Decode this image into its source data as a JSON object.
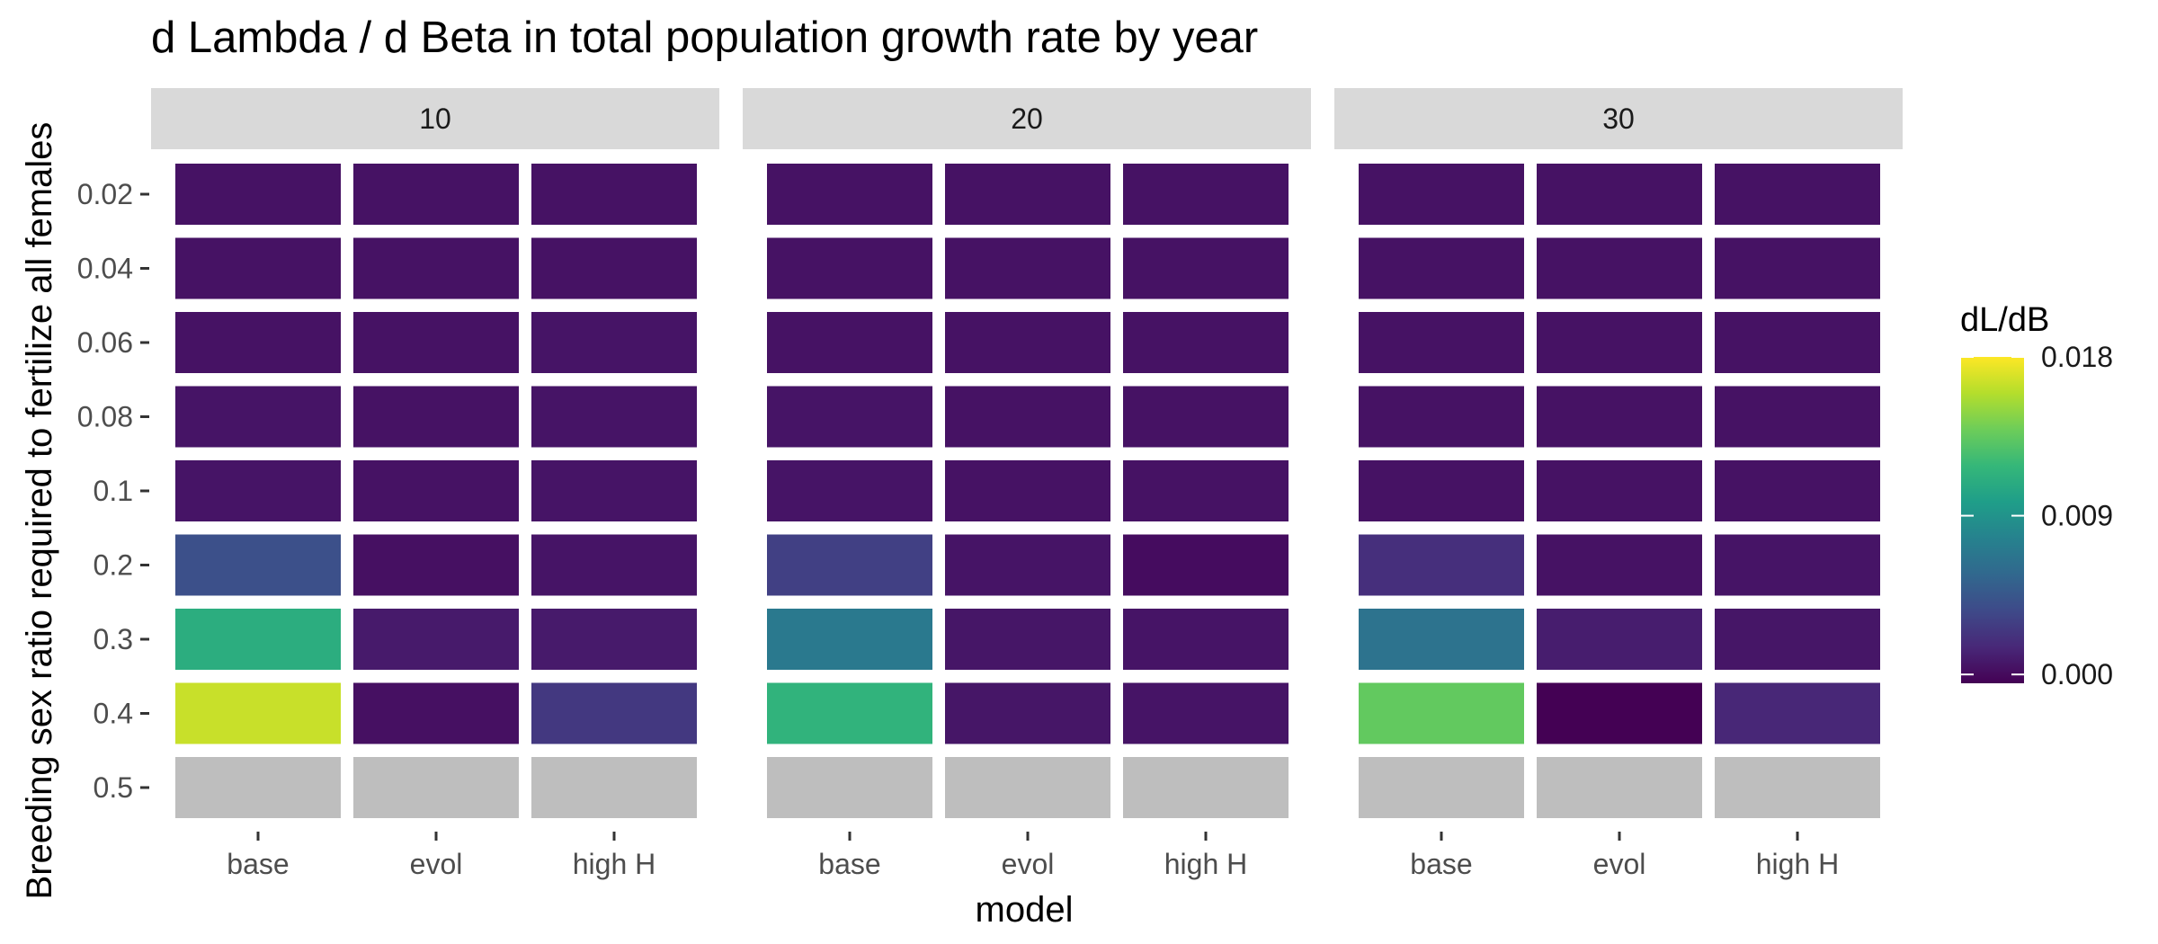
{
  "chart_data": {
    "type": "heatmap",
    "title": "d Lambda / d Beta in total population growth rate by year",
    "xlabel": "model",
    "ylabel": "Breeding sex ratio required to fertilize all females",
    "facet_labels": [
      "10",
      "20",
      "30"
    ],
    "x_categories": [
      "base",
      "evol",
      "high H"
    ],
    "y_categories": [
      "0.02",
      "0.04",
      "0.06",
      "0.08",
      "0.1",
      "0.2",
      "0.3",
      "0.4",
      "0.5"
    ],
    "legend": {
      "title": "dL/dB",
      "breaks": [
        "0.018",
        "0.009",
        "0.000"
      ],
      "limits": [
        -0.0005,
        0.018
      ],
      "placement": "right"
    },
    "na_color": "#bebebe",
    "colors": [
      "#440154",
      "#482878",
      "#3e4a89",
      "#31688e",
      "#26828e",
      "#1f9e89",
      "#35b779",
      "#6dcd59",
      "#b4de2c",
      "#fde725"
    ],
    "grid": false,
    "panels": [
      {
        "facet": "10",
        "values": {
          "base": [
            0.0004,
            0.0004,
            0.0004,
            0.0005,
            0.0005,
            0.004,
            0.011,
            0.0165,
            null
          ],
          "evol": [
            0.0004,
            0.0004,
            0.0004,
            0.0004,
            0.0004,
            0.0003,
            0.0008,
            0.0003,
            null
          ],
          "high H": [
            0.0004,
            0.0004,
            0.0005,
            0.0005,
            0.0005,
            0.0005,
            0.0008,
            0.0025,
            null
          ]
        }
      },
      {
        "facet": "20",
        "values": {
          "base": [
            0.0004,
            0.0004,
            0.0004,
            0.0005,
            0.0005,
            0.003,
            0.007,
            0.0115,
            null
          ],
          "evol": [
            0.0004,
            0.0004,
            0.0004,
            0.0004,
            0.0004,
            0.0005,
            0.0006,
            0.0006,
            null
          ],
          "high H": [
            0.0004,
            0.0004,
            0.0004,
            0.0004,
            0.0004,
            0.0001,
            0.0005,
            0.0005,
            null
          ]
        }
      },
      {
        "facet": "30",
        "values": {
          "base": [
            0.0004,
            0.0004,
            0.0004,
            0.0004,
            0.0004,
            0.002,
            0.0065,
            0.0135,
            null
          ],
          "evol": [
            0.0004,
            0.0004,
            0.0004,
            0.0004,
            0.0004,
            0.0004,
            0.001,
            -0.0005,
            null
          ],
          "high H": [
            0.0004,
            0.0004,
            0.0004,
            0.0004,
            0.0004,
            0.0005,
            0.0006,
            0.0015,
            null
          ]
        }
      }
    ]
  }
}
